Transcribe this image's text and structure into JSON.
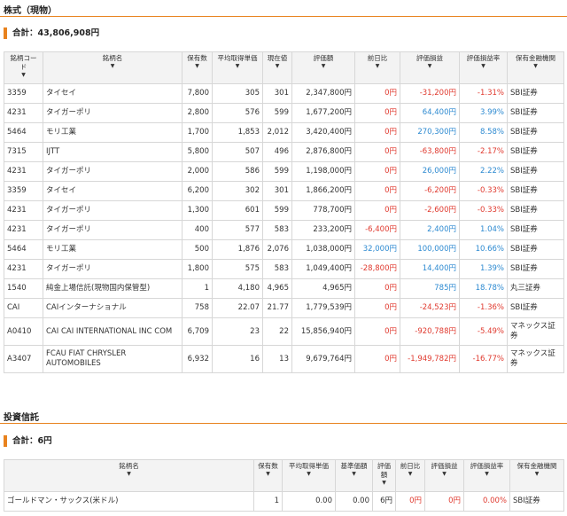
{
  "stocks": {
    "section_title": "株式（現物）",
    "total": "合計：43,806,908円",
    "headers": [
      "銘柄コード",
      "銘柄名",
      "保有数",
      "平均取得単価",
      "現在値",
      "評価額",
      "前日比",
      "評価損益",
      "評価損益率",
      "保有金融機関"
    ],
    "sort_icon": "sort-down-icon",
    "rows": [
      {
        "code": "3359",
        "name": "タイセイ",
        "qty": "7,800",
        "avg": "305",
        "price": "301",
        "value": "2,347,800円",
        "change": "0円",
        "change_type": "zero",
        "pl": "-31,200円",
        "pl_type": "neg",
        "rate": "-1.31%",
        "rate_type": "neg",
        "broker": "SBI証券"
      },
      {
        "code": "4231",
        "name": "タイガーポリ",
        "qty": "2,800",
        "avg": "576",
        "price": "599",
        "value": "1,677,200円",
        "change": "0円",
        "change_type": "zero",
        "pl": "64,400円",
        "pl_type": "pos",
        "rate": "3.99%",
        "rate_type": "pos",
        "broker": "SBI証券"
      },
      {
        "code": "5464",
        "name": "モリ工業",
        "qty": "1,700",
        "avg": "1,853",
        "price": "2,012",
        "value": "3,420,400円",
        "change": "0円",
        "change_type": "zero",
        "pl": "270,300円",
        "pl_type": "pos",
        "rate": "8.58%",
        "rate_type": "pos",
        "broker": "SBI証券"
      },
      {
        "code": "7315",
        "name": "IJTT",
        "qty": "5,800",
        "avg": "507",
        "price": "496",
        "value": "2,876,800円",
        "change": "0円",
        "change_type": "zero",
        "pl": "-63,800円",
        "pl_type": "neg",
        "rate": "-2.17%",
        "rate_type": "neg",
        "broker": "SBI証券"
      },
      {
        "code": "4231",
        "name": "タイガーポリ",
        "qty": "2,000",
        "avg": "586",
        "price": "599",
        "value": "1,198,000円",
        "change": "0円",
        "change_type": "zero",
        "pl": "26,000円",
        "pl_type": "pos",
        "rate": "2.22%",
        "rate_type": "pos",
        "broker": "SBI証券"
      },
      {
        "code": "3359",
        "name": "タイセイ",
        "qty": "6,200",
        "avg": "302",
        "price": "301",
        "value": "1,866,200円",
        "change": "0円",
        "change_type": "zero",
        "pl": "-6,200円",
        "pl_type": "neg",
        "rate": "-0.33%",
        "rate_type": "neg",
        "broker": "SBI証券"
      },
      {
        "code": "4231",
        "name": "タイガーポリ",
        "qty": "1,300",
        "avg": "601",
        "price": "599",
        "value": "778,700円",
        "change": "0円",
        "change_type": "zero",
        "pl": "-2,600円",
        "pl_type": "neg",
        "rate": "-0.33%",
        "rate_type": "neg",
        "broker": "SBI証券"
      },
      {
        "code": "4231",
        "name": "タイガーポリ",
        "qty": "400",
        "avg": "577",
        "price": "583",
        "value": "233,200円",
        "change": "-6,400円",
        "change_type": "neg",
        "pl": "2,400円",
        "pl_type": "pos",
        "rate": "1.04%",
        "rate_type": "pos",
        "broker": "SBI証券"
      },
      {
        "code": "5464",
        "name": "モリ工業",
        "qty": "500",
        "avg": "1,876",
        "price": "2,076",
        "value": "1,038,000円",
        "change": "32,000円",
        "change_type": "pos",
        "pl": "100,000円",
        "pl_type": "pos",
        "rate": "10.66%",
        "rate_type": "pos",
        "broker": "SBI証券"
      },
      {
        "code": "4231",
        "name": "タイガーポリ",
        "qty": "1,800",
        "avg": "575",
        "price": "583",
        "value": "1,049,400円",
        "change": "-28,800円",
        "change_type": "neg",
        "pl": "14,400円",
        "pl_type": "pos",
        "rate": "1.39%",
        "rate_type": "pos",
        "broker": "SBI証券"
      },
      {
        "code": "1540",
        "name": "純金上場信託(現物国内保管型)",
        "qty": "1",
        "avg": "4,180",
        "price": "4,965",
        "value": "4,965円",
        "change": "0円",
        "change_type": "zero",
        "pl": "785円",
        "pl_type": "pos",
        "rate": "18.78%",
        "rate_type": "pos",
        "broker": "丸三証券"
      },
      {
        "code": "CAI",
        "name": "CAIインターナショナル",
        "qty": "758",
        "avg": "22.07",
        "price": "21.77",
        "value": "1,779,539円",
        "change": "0円",
        "change_type": "zero",
        "pl": "-24,523円",
        "pl_type": "neg",
        "rate": "-1.36%",
        "rate_type": "neg",
        "broker": "SBI証券"
      },
      {
        "code": "A0410",
        "name": "CAI CAI INTERNATIONAL INC COM",
        "qty": "6,709",
        "avg": "23",
        "price": "22",
        "value": "15,856,940円",
        "change": "0円",
        "change_type": "zero",
        "pl": "-920,788円",
        "pl_type": "neg",
        "rate": "-5.49%",
        "rate_type": "neg",
        "broker": "マネックス証券",
        "tall": true
      },
      {
        "code": "A3407",
        "name": "FCAU FIAT CHRYSLER AUTOMOBILES",
        "qty": "6,932",
        "avg": "16",
        "price": "13",
        "value": "9,679,764円",
        "change": "0円",
        "change_type": "zero",
        "pl": "-1,949,782円",
        "pl_type": "neg",
        "rate": "-16.77%",
        "rate_type": "neg",
        "broker": "マネックス証券",
        "tall": true
      }
    ]
  },
  "funds": {
    "section_title": "投資信託",
    "total": "合計：6円",
    "headers": [
      "銘柄名",
      "保有数",
      "平均取得単価",
      "基準価額",
      "評価額",
      "前日比",
      "評価損益",
      "評価損益率",
      "保有金融機関"
    ],
    "rows": [
      {
        "name": "ゴールドマン・サックス(米ドル)",
        "qty": "1",
        "avg": "0.00",
        "base": "0.00",
        "value": "6円",
        "change": "0円",
        "change_type": "zero",
        "pl": "0円",
        "pl_type": "zero",
        "rate": "0.00%",
        "rate_type": "zero",
        "broker": "SBI証券"
      }
    ]
  }
}
